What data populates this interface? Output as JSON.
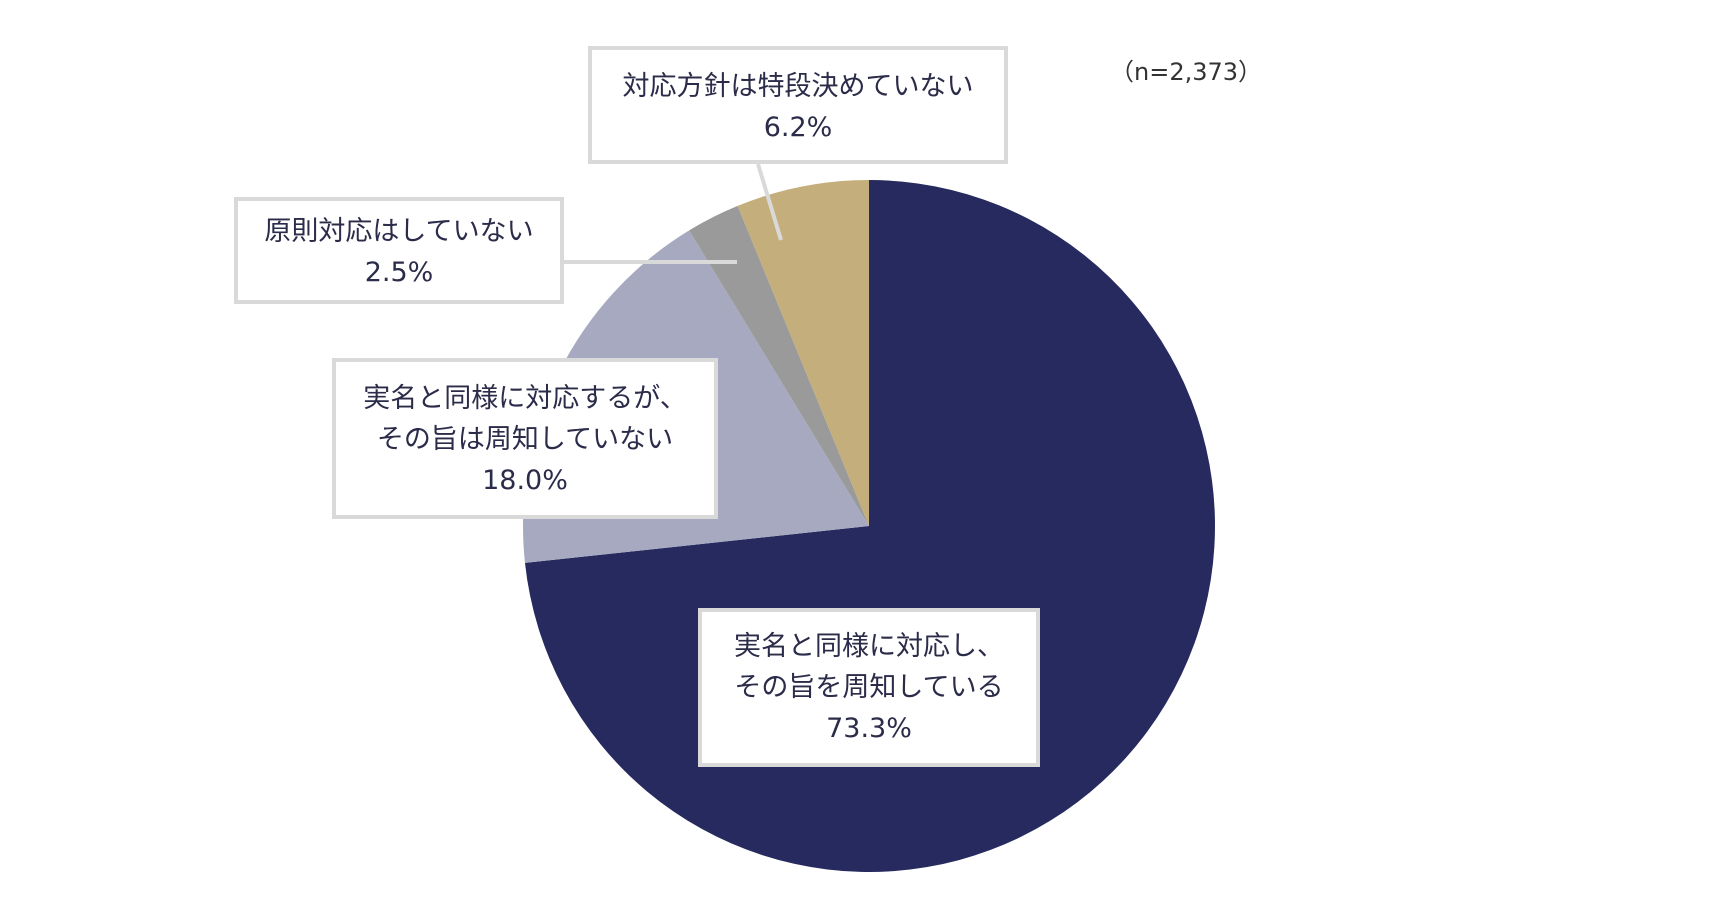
{
  "note": "（n=2,373）",
  "chart_data": {
    "type": "pie",
    "slices": [
      {
        "line1": "実名と同様に対応し、",
        "line2": "その旨を周知している",
        "label": "73.3%",
        "value": 73.3,
        "color": "#262a5e"
      },
      {
        "line1": "実名と同様に対応するが、",
        "line2": "その旨は周知していない",
        "label": "18.0%",
        "value": 18.0,
        "color": "#a7a9c0"
      },
      {
        "line1": "原則対応はしていない",
        "line2": "",
        "label": "2.5%",
        "value": 2.5,
        "color": "#9a9a9a"
      },
      {
        "line1": "対応方針は特段決めていない",
        "line2": "",
        "label": "6.2%",
        "value": 6.2,
        "color": "#c4ae7b"
      }
    ]
  }
}
